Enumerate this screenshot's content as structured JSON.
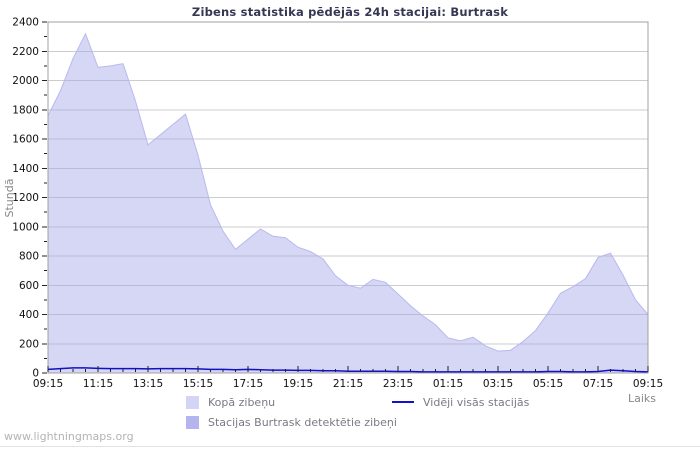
{
  "watermark": "www.lightningmaps.org",
  "chart_data": {
    "type": "area",
    "title": "Zibens statistika pēdējās 24h stacijai: Burtrask",
    "xlabel": "Laiks",
    "ylabel": "Stundā",
    "ylim": [
      0,
      2400
    ],
    "y_major_step": 200,
    "y_minor_step": 100,
    "x_major_every": 4,
    "grid": true,
    "legend_position": "bottom",
    "colors": {
      "grid": "#cccccc",
      "plot_border": "#a0a0a0",
      "tick": "#222222",
      "tick_label": "#111111",
      "title": "#373754",
      "axis_title": "#888888",
      "legend_text": "#7a7a85",
      "watermark": "#b3b3b3"
    },
    "x": [
      "09:15",
      "09:45",
      "10:15",
      "10:45",
      "11:15",
      "11:45",
      "12:15",
      "12:45",
      "13:15",
      "13:45",
      "14:15",
      "14:45",
      "15:15",
      "15:45",
      "16:15",
      "16:45",
      "17:15",
      "17:45",
      "18:15",
      "18:45",
      "19:15",
      "19:45",
      "20:15",
      "20:45",
      "21:15",
      "21:45",
      "22:15",
      "22:45",
      "23:15",
      "23:45",
      "00:15",
      "00:45",
      "01:15",
      "01:45",
      "02:15",
      "02:45",
      "03:15",
      "03:45",
      "04:15",
      "04:45",
      "05:15",
      "05:45",
      "06:15",
      "06:45",
      "07:15",
      "07:45",
      "08:15",
      "08:45",
      "09:15"
    ],
    "series": [
      {
        "name": "Kopā zibeņu",
        "slug": "total-lightning-area",
        "style": "area",
        "fill": "rgba(163,163,232,0.45)",
        "edge": "#b9b9ef",
        "legend_color": "#d4d4f6",
        "values": [
          1760,
          1930,
          2150,
          2320,
          2090,
          2100,
          2115,
          1860,
          1560,
          1630,
          1700,
          1770,
          1490,
          1150,
          970,
          845,
          915,
          985,
          935,
          925,
          860,
          830,
          780,
          665,
          600,
          580,
          640,
          620,
          540,
          460,
          390,
          330,
          240,
          220,
          245,
          185,
          150,
          155,
          215,
          290,
          410,
          545,
          590,
          645,
          790,
          820,
          670,
          500,
          400
        ]
      },
      {
        "name": "Stacijas Burtrask detektētie zibeņi",
        "slug": "station-detected-area",
        "style": "area",
        "fill": "rgba(130,130,220,0.8)",
        "edge": "#9a9ae0",
        "legend_color": "#b4b4ee",
        "values": [
          0,
          0,
          0,
          0,
          0,
          0,
          0,
          0,
          0,
          0,
          0,
          0,
          0,
          0,
          0,
          0,
          0,
          0,
          0,
          0,
          0,
          0,
          0,
          0,
          0,
          0,
          0,
          0,
          0,
          0,
          0,
          0,
          0,
          0,
          0,
          0,
          0,
          0,
          0,
          0,
          0,
          0,
          0,
          0,
          0,
          0,
          0,
          0,
          0
        ]
      },
      {
        "name": "Vidēji visās stacijās",
        "slug": "average-all-stations-line",
        "style": "line",
        "color": "#1111cc",
        "legend_color": "#1111cc",
        "values": [
          25,
          30,
          35,
          35,
          32,
          30,
          30,
          30,
          28,
          30,
          30,
          30,
          28,
          25,
          25,
          22,
          25,
          22,
          20,
          20,
          18,
          18,
          15,
          15,
          12,
          12,
          12,
          12,
          10,
          10,
          8,
          8,
          8,
          8,
          8,
          8,
          8,
          8,
          8,
          8,
          10,
          10,
          8,
          8,
          10,
          20,
          15,
          10,
          8
        ]
      }
    ]
  }
}
